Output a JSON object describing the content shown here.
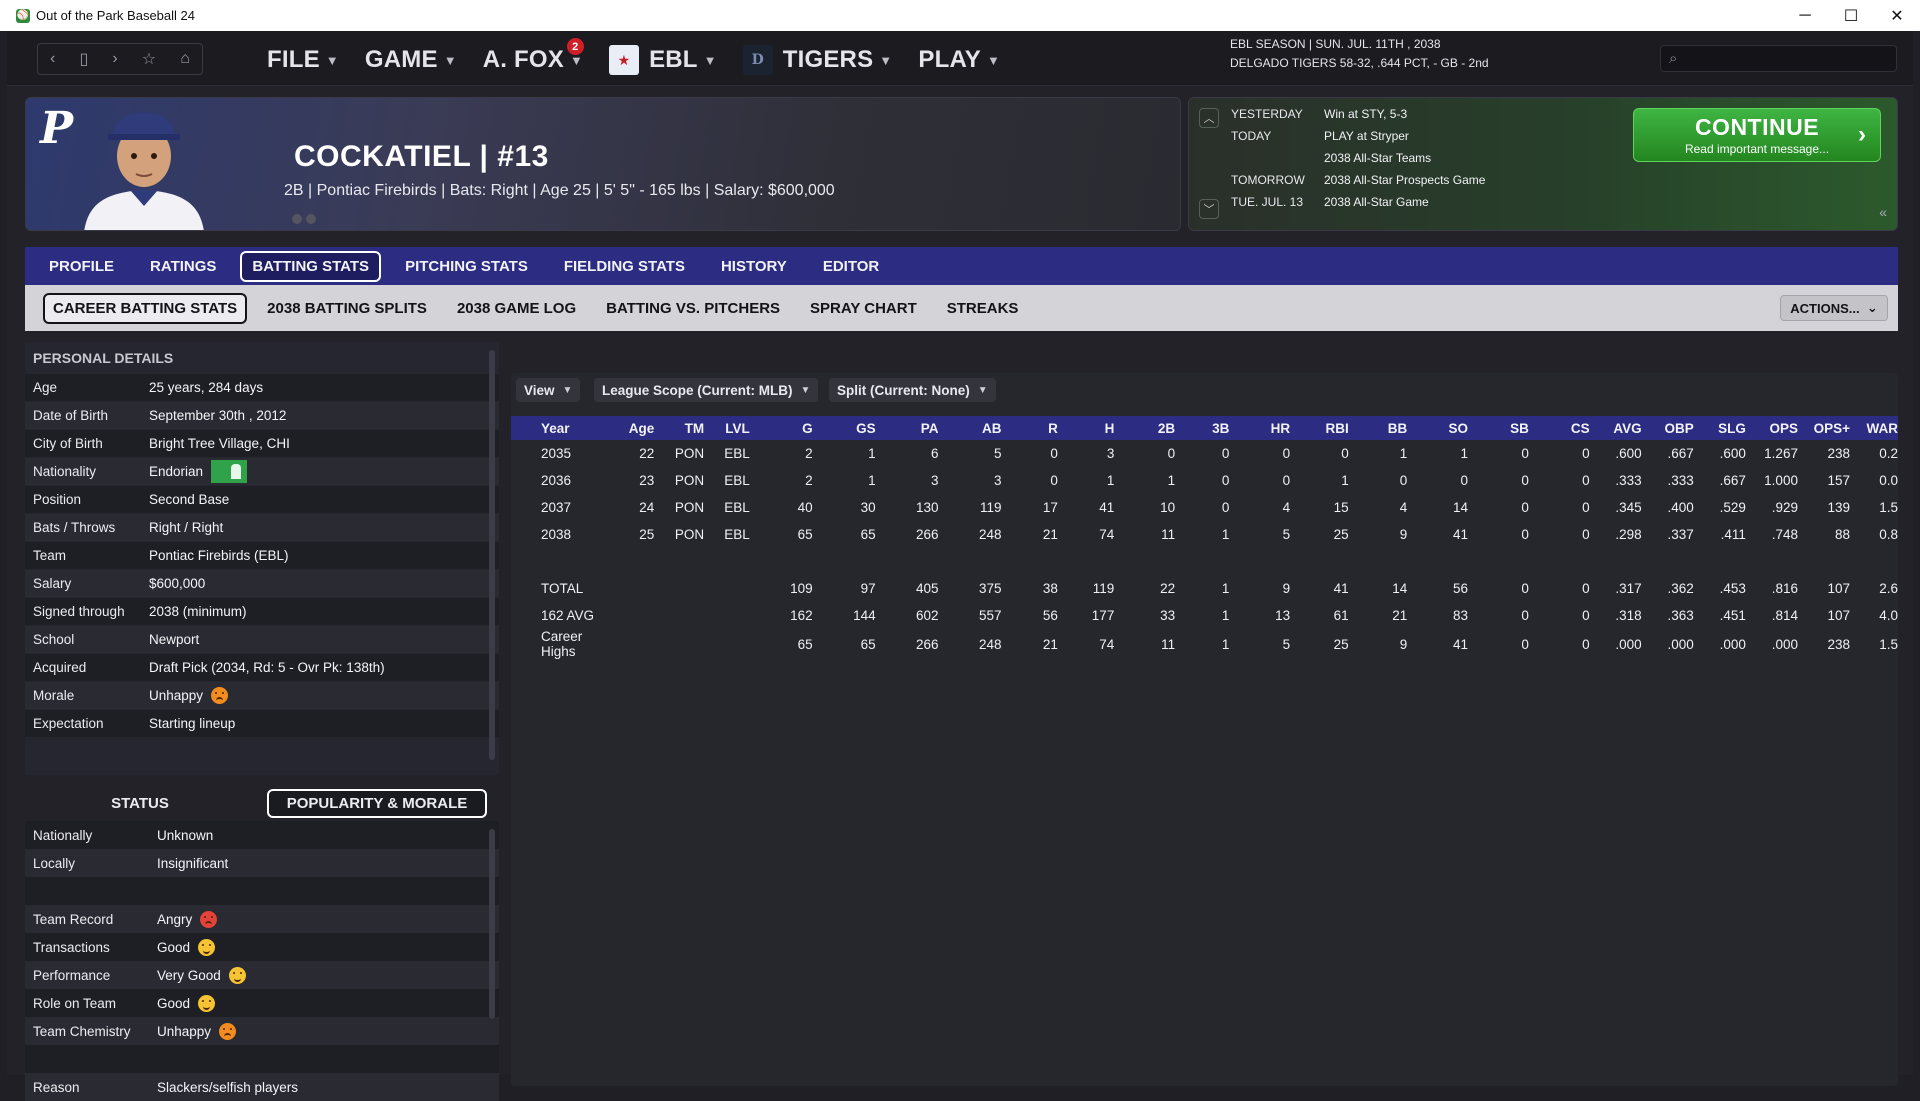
{
  "window": {
    "title": "Out of the Park Baseball 24",
    "minimize": "─",
    "maximize": "☐",
    "close": "✕"
  },
  "nav": {
    "menus": [
      {
        "label": "FILE"
      },
      {
        "label": "GAME"
      },
      {
        "label": "A. FOX",
        "badge": "2"
      },
      {
        "label": "EBL"
      },
      {
        "label": "TIGERS"
      },
      {
        "label": "PLAY"
      }
    ],
    "status_line1": "EBL SEASON  |  SUN. JUL. 11TH , 2038",
    "status_line2": "DELGADO TIGERS   58-32, .644 PCT, - GB - 2nd",
    "search_placeholder": ""
  },
  "player": {
    "name": "COCKATIEL  |  #13",
    "info": "2B | Pontiac Firebirds  |  Bats: Right  |  Age 25  |  5' 5\" - 165 lbs  |  Salary: $600,000"
  },
  "schedule": {
    "rows": [
      {
        "label": "YESTERDAY",
        "value": "Win at STY, 5-3"
      },
      {
        "label": "TODAY",
        "value": "PLAY at Stryper"
      },
      {
        "label": "",
        "value": "2038 All-Star Teams"
      },
      {
        "label": "TOMORROW",
        "value": "2038 All-Star Prospects Game"
      },
      {
        "label": "TUE. JUL. 13",
        "value": "2038 All-Star Game"
      }
    ],
    "continue_label": "CONTINUE",
    "continue_sub": "Read important message..."
  },
  "tabs": [
    "PROFILE",
    "RATINGS",
    "BATTING STATS",
    "PITCHING STATS",
    "FIELDING STATS",
    "HISTORY",
    "EDITOR"
  ],
  "subtabs": [
    "CAREER BATTING STATS",
    "2038 BATTING SPLITS",
    "2038 GAME LOG",
    "BATTING VS. PITCHERS",
    "SPRAY CHART",
    "STREAKS"
  ],
  "actions_label": "ACTIONS...",
  "personal": {
    "header": "PERSONAL DETAILS",
    "rows": [
      {
        "k": "Age",
        "v": "25 years, 284 days"
      },
      {
        "k": "Date of Birth",
        "v": "September 30th , 2012"
      },
      {
        "k": "City of Birth",
        "v": "Bright Tree Village, CHI"
      },
      {
        "k": "Nationality",
        "v": "Endorian"
      },
      {
        "k": "Position",
        "v": "Second Base"
      },
      {
        "k": "Bats / Throws",
        "v": "Right / Right"
      },
      {
        "k": "Team",
        "v": "Pontiac Firebirds (EBL)"
      },
      {
        "k": "Salary",
        "v": "$600,000"
      },
      {
        "k": "Signed through",
        "v": "2038 (minimum)"
      },
      {
        "k": "School",
        "v": "Newport"
      },
      {
        "k": "Acquired",
        "v": "Draft Pick (2034, Rd: 5 - Ovr Pk: 138th)"
      },
      {
        "k": "Morale",
        "v": "Unhappy"
      },
      {
        "k": "Expectation",
        "v": "Starting lineup"
      }
    ]
  },
  "status_tabs": [
    "STATUS",
    "POPULARITY & MORALE"
  ],
  "status": {
    "rows": [
      {
        "k": "Nationally",
        "v": "Unknown"
      },
      {
        "k": "Locally",
        "v": "Insignificant"
      },
      {
        "k": "",
        "v": ""
      },
      {
        "k": "Team Record",
        "v": "Angry"
      },
      {
        "k": "Transactions",
        "v": "Good"
      },
      {
        "k": "Performance",
        "v": "Very Good"
      },
      {
        "k": "Role on Team",
        "v": "Good"
      },
      {
        "k": "Team Chemistry",
        "v": "Unhappy"
      },
      {
        "k": "",
        "v": ""
      },
      {
        "k": "Reason",
        "v": "Slackers/selfish players"
      }
    ]
  },
  "filters": {
    "view": "View",
    "scope": "League Scope (Current: MLB)",
    "split": "Split (Current: None)"
  },
  "stats": {
    "columns": [
      "Year",
      "Age",
      "TM",
      "LVL",
      "G",
      "GS",
      "PA",
      "AB",
      "R",
      "H",
      "2B",
      "3B",
      "HR",
      "RBI",
      "BB",
      "SO",
      "SB",
      "CS",
      "AVG",
      "OBP",
      "SLG",
      "OPS",
      "OPS+",
      "WAR"
    ],
    "rows": [
      [
        "2035",
        "22",
        "PON",
        "EBL",
        "2",
        "1",
        "6",
        "5",
        "0",
        "3",
        "0",
        "0",
        "0",
        "0",
        "1",
        "1",
        "0",
        "0",
        ".600",
        ".667",
        ".600",
        "1.267",
        "238",
        "0.2"
      ],
      [
        "2036",
        "23",
        "PON",
        "EBL",
        "2",
        "1",
        "3",
        "3",
        "0",
        "1",
        "1",
        "0",
        "0",
        "1",
        "0",
        "0",
        "0",
        "0",
        ".333",
        ".333",
        ".667",
        "1.000",
        "157",
        "0.0"
      ],
      [
        "2037",
        "24",
        "PON",
        "EBL",
        "40",
        "30",
        "130",
        "119",
        "17",
        "41",
        "10",
        "0",
        "4",
        "15",
        "4",
        "14",
        "0",
        "0",
        ".345",
        ".400",
        ".529",
        ".929",
        "139",
        "1.5"
      ],
      [
        "2038",
        "25",
        "PON",
        "EBL",
        "65",
        "65",
        "266",
        "248",
        "21",
        "74",
        "11",
        "1",
        "5",
        "25",
        "9",
        "41",
        "0",
        "0",
        ".298",
        ".337",
        ".411",
        ".748",
        "88",
        "0.8"
      ]
    ],
    "totals": [
      [
        "TOTAL",
        "",
        "",
        "",
        "109",
        "97",
        "405",
        "375",
        "38",
        "119",
        "22",
        "1",
        "9",
        "41",
        "14",
        "56",
        "0",
        "0",
        ".317",
        ".362",
        ".453",
        ".816",
        "107",
        "2.6"
      ],
      [
        "162 AVG",
        "",
        "",
        "",
        "162",
        "144",
        "602",
        "557",
        "56",
        "177",
        "33",
        "1",
        "13",
        "61",
        "21",
        "83",
        "0",
        "0",
        ".318",
        ".363",
        ".451",
        ".814",
        "107",
        "4.0"
      ],
      [
        "Career Highs",
        "",
        "",
        "",
        "65",
        "65",
        "266",
        "248",
        "21",
        "74",
        "11",
        "1",
        "5",
        "25",
        "9",
        "41",
        "0",
        "0",
        ".000",
        ".000",
        ".000",
        ".000",
        "238",
        "1.5"
      ]
    ]
  }
}
